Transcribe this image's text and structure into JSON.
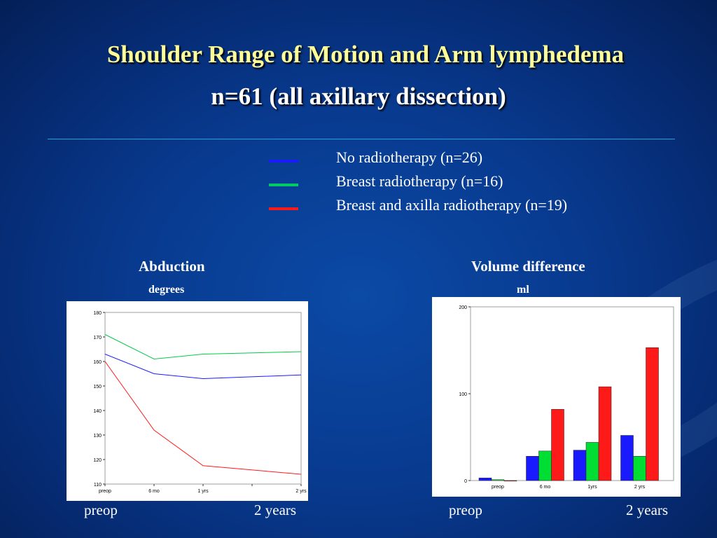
{
  "slide": {
    "title": "Shoulder Range of Motion and Arm lymphedema",
    "subtitle": "n=61 (all axillary dissection)"
  },
  "legend": [
    {
      "label": "No radiotherapy  (n=26)",
      "color": "#1a1aff"
    },
    {
      "label": "Breast radiotherapy  (n=16)",
      "color": "#00cc66"
    },
    {
      "label": "Breast and axilla radiotherapy  (n=19)",
      "color": "#ff1a1a"
    }
  ],
  "left_chart": {
    "heading": "Abduction",
    "unit": "degrees",
    "foot_left": "preop",
    "foot_right": "2 years"
  },
  "right_chart": {
    "heading": "Volume difference",
    "unit": "ml",
    "foot_left": "preop",
    "foot_right": "2 years"
  },
  "chart_data": [
    {
      "type": "line",
      "title": "Abduction",
      "ylabel": "degrees",
      "categories": [
        "preop",
        "6 mo",
        "1 yrs",
        "",
        "2 yrs"
      ],
      "x": [
        0,
        1,
        2,
        3,
        4
      ],
      "ylim": [
        110,
        180
      ],
      "yticks": [
        110,
        120,
        130,
        140,
        150,
        160,
        170,
        180
      ],
      "series": [
        {
          "name": "No radiotherapy  (n=26)",
          "color": "#1a1aff",
          "x": [
            0,
            1,
            2,
            4
          ],
          "values": [
            163,
            155,
            153,
            154.5
          ]
        },
        {
          "name": "Breast radiotherapy  (n=16)",
          "color": "#00cc44",
          "x": [
            0,
            1,
            2,
            4
          ],
          "values": [
            171,
            161,
            163,
            164
          ]
        },
        {
          "name": "Breast and axilla radiotherapy  (n=19)",
          "color": "#ff1a1a",
          "x": [
            0,
            1,
            2,
            4
          ],
          "values": [
            160,
            132,
            117.5,
            114
          ]
        }
      ]
    },
    {
      "type": "bar",
      "title": "Volume difference",
      "ylabel": "ml",
      "categories": [
        "preop",
        "6 mo",
        "1yrs",
        "2 yrs"
      ],
      "ylim": [
        0,
        200
      ],
      "yticks": [
        0,
        100,
        200
      ],
      "series": [
        {
          "name": "No radiotherapy  (n=26)",
          "color": "#1a1aff",
          "values": [
            3,
            28,
            35,
            52
          ]
        },
        {
          "name": "Breast radiotherapy  (n=16)",
          "color": "#00dd33",
          "values": [
            1,
            34,
            44,
            28
          ]
        },
        {
          "name": "Breast and axilla radiotherapy  (n=19)",
          "color": "#ff1a1a",
          "values": [
            0,
            82,
            108,
            153
          ]
        }
      ]
    }
  ]
}
